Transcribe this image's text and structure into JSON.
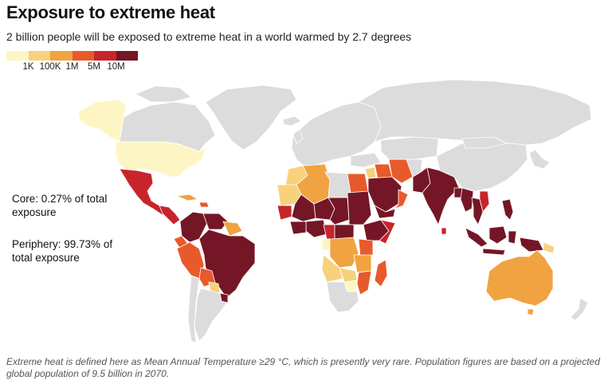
{
  "header": {
    "title": "Exposure to extreme heat",
    "subtitle": "2 billion people will be exposed to extreme heat in a world warmed by 2.7 degrees"
  },
  "legend": {
    "colors": [
      "#fdf6c4",
      "#f7d17c",
      "#f0a340",
      "#e85a2c",
      "#c8242b",
      "#741626"
    ],
    "labels": [
      "1K",
      "100K",
      "1M",
      "5M",
      "10M"
    ]
  },
  "notes": {
    "core": "Core: 0.27% of total exposure",
    "periphery": "Periphery: 99.73% of total exposure"
  },
  "map_colors": {
    "no_data": "#dcdcdc",
    "border": "#ffffff"
  },
  "footer": {
    "text": "Extreme heat is defined here as Mean Annual Temperature ≥29 °C, which is presently very rare. Population figures are based on a projected global population of 9.5 billion in 2070."
  }
}
